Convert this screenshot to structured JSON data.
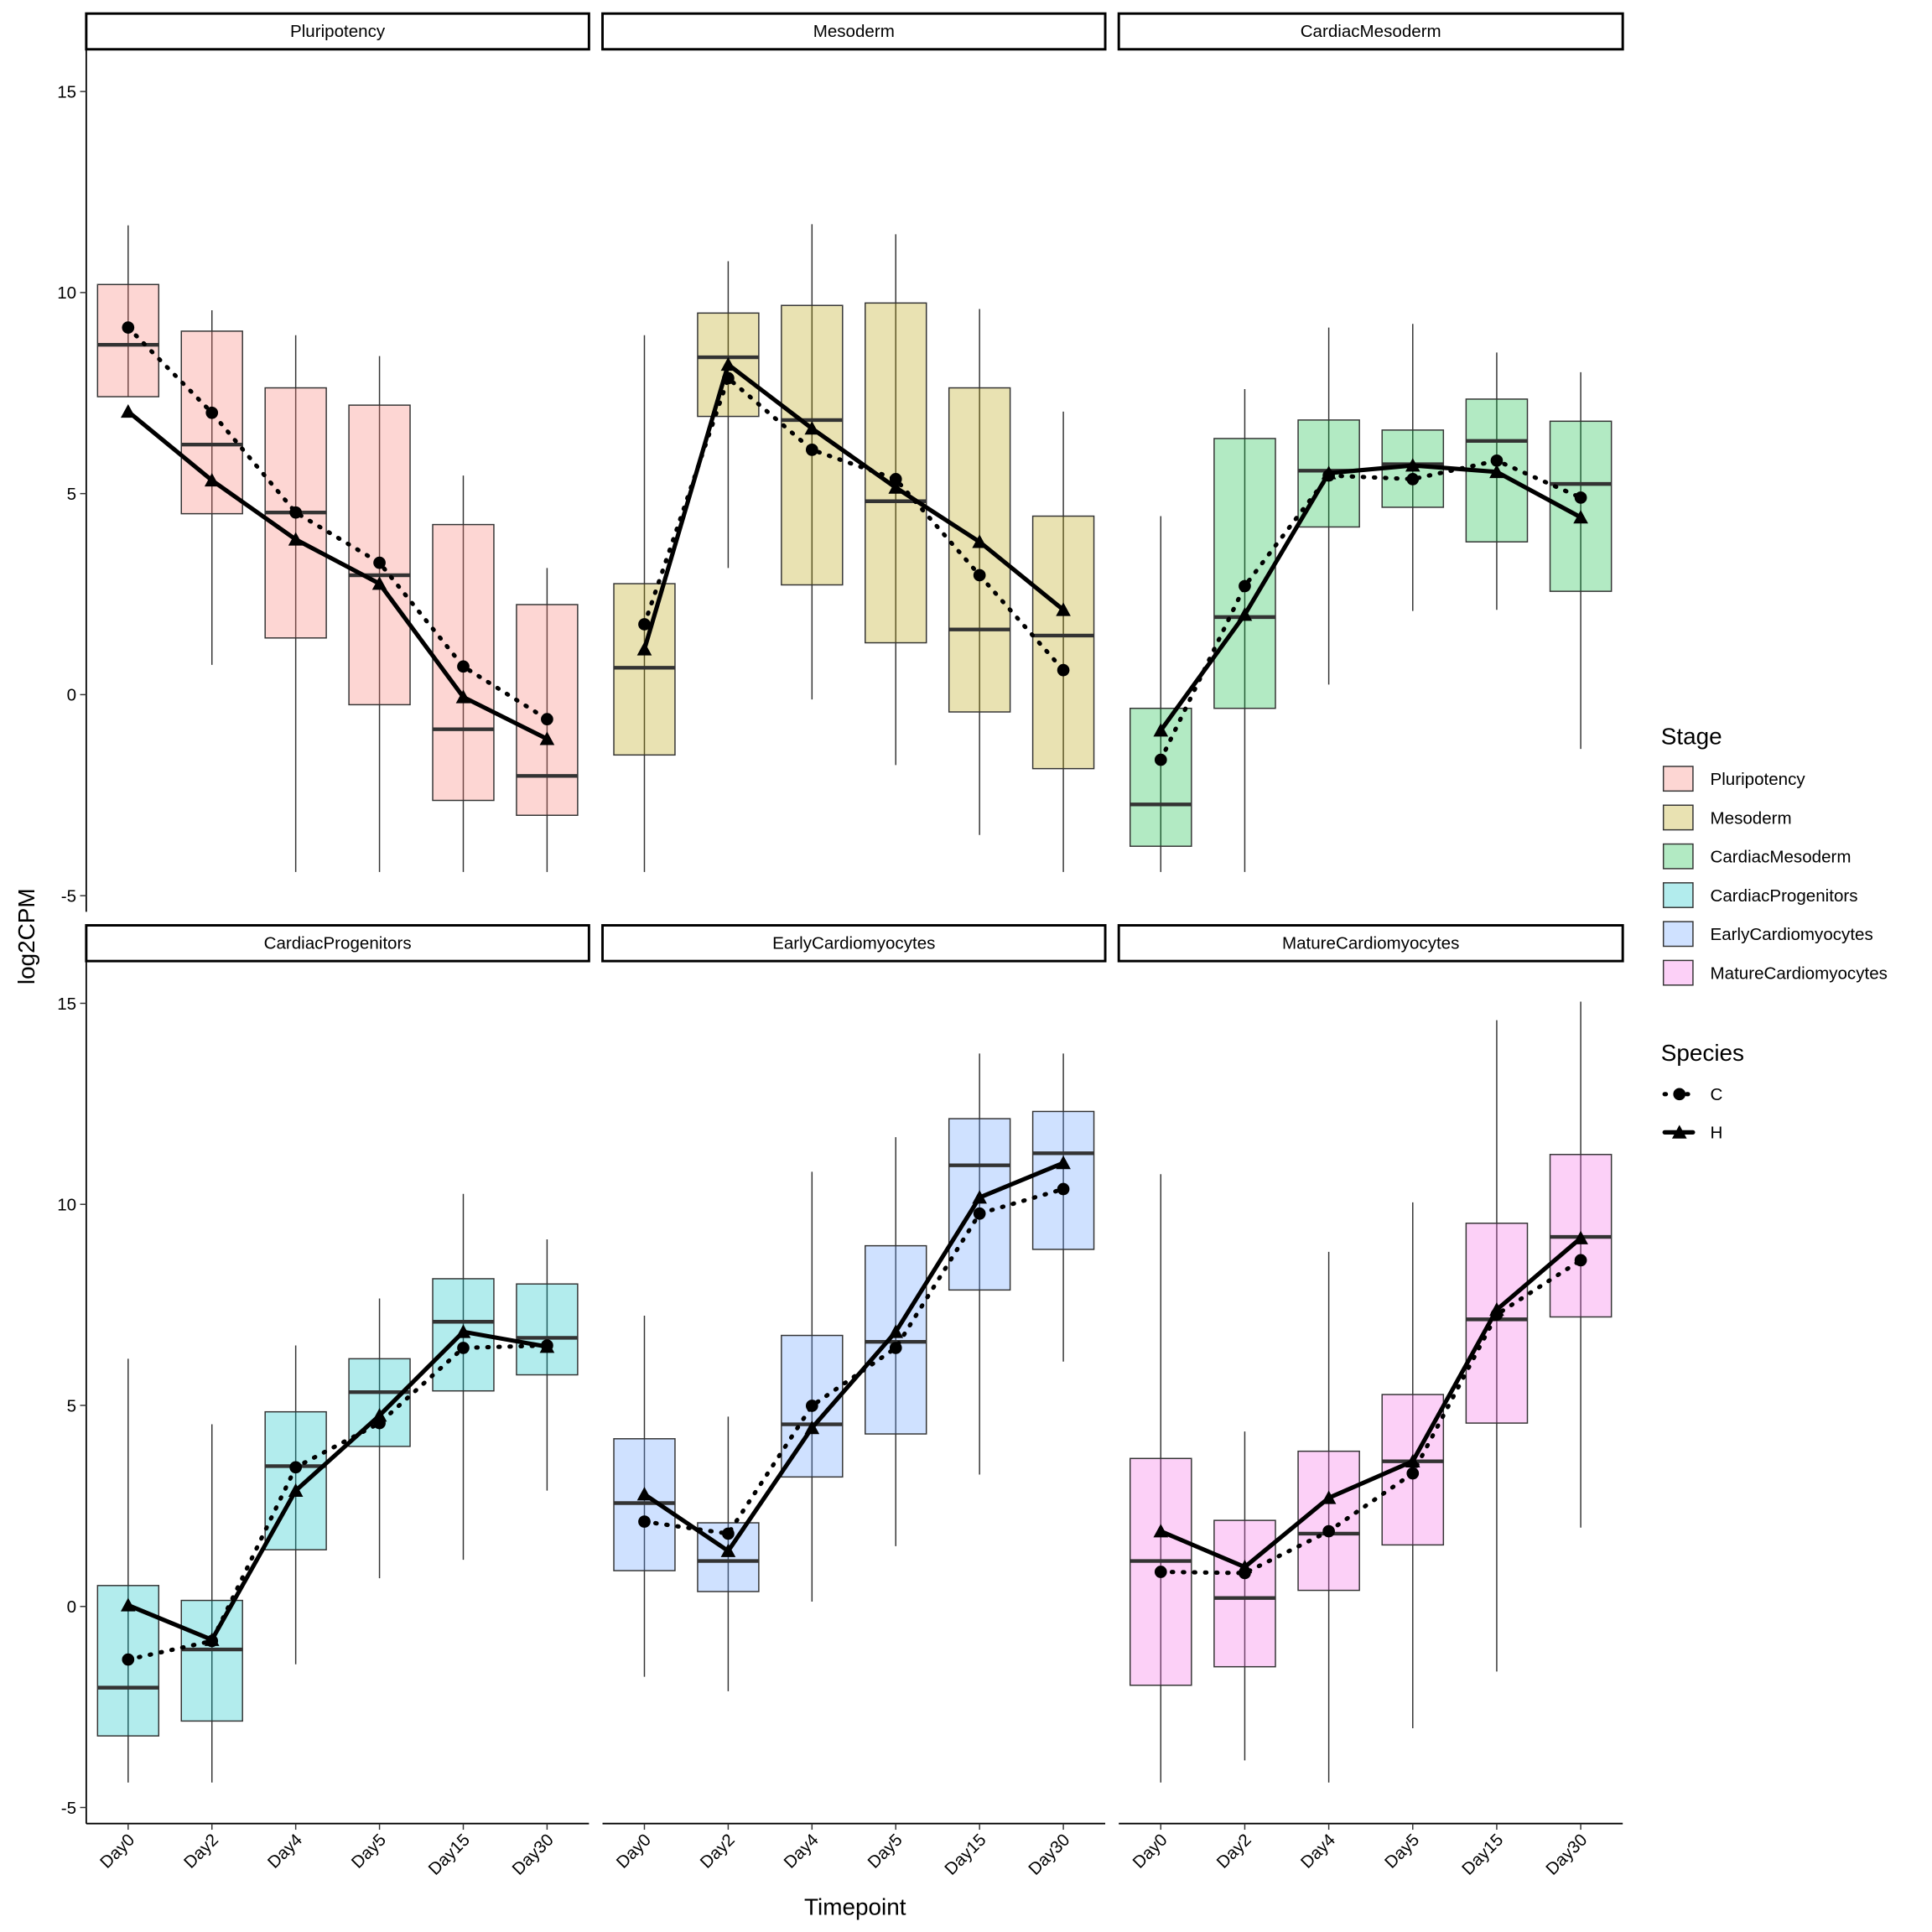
{
  "chart_data": [
    {
      "type": "box",
      "title": "Pluripotency",
      "color": "#F8766D",
      "categories": [
        "Day0",
        "Day2",
        "Day4",
        "Day5",
        "Day15",
        "Day30"
      ],
      "ylim": [
        -5.4,
        16.05
      ],
      "yticks": [
        -5,
        0,
        5,
        10,
        15
      ],
      "whisker_low": [
        7.41,
        0.74,
        -4.41,
        -4.41,
        -4.41,
        -4.41
      ],
      "q1": [
        7.41,
        4.5,
        1.41,
        -0.25,
        -2.63,
        -3.0
      ],
      "median": [
        8.7,
        6.22,
        4.53,
        2.97,
        -0.86,
        -2.02
      ],
      "q3": [
        10.2,
        9.04,
        7.63,
        7.2,
        4.23,
        2.24
      ],
      "whisker_high": [
        11.67,
        9.56,
        8.94,
        8.42,
        5.45,
        3.15
      ],
      "series": [
        {
          "name": "C",
          "color": "#000000",
          "values": [
            9.13,
            7.01,
            4.53,
            3.28,
            0.7,
            -0.61
          ]
        },
        {
          "name": "H",
          "color": "#000000",
          "values": [
            7.04,
            5.33,
            3.86,
            2.76,
            -0.06,
            -1.1
          ]
        }
      ]
    },
    {
      "type": "box",
      "title": "Mesoderm",
      "color": "#B79F00",
      "categories": [
        "Day0",
        "Day2",
        "Day4",
        "Day5",
        "Day15",
        "Day30"
      ],
      "ylim": [
        -5.4,
        16.05
      ],
      "whisker_low": [
        -4.41,
        3.15,
        -0.12,
        -1.75,
        -3.49,
        -4.41
      ],
      "q1": [
        -1.5,
        6.92,
        2.73,
        1.29,
        -0.43,
        -1.84
      ],
      "median": [
        0.67,
        8.39,
        6.83,
        4.81,
        1.62,
        1.47
      ],
      "q3": [
        2.76,
        9.49,
        9.68,
        9.74,
        7.63,
        4.44
      ],
      "whisker_high": [
        8.94,
        10.78,
        11.7,
        11.45,
        9.59,
        7.04
      ],
      "series": [
        {
          "name": "C",
          "color": "#000000",
          "values": [
            1.75,
            7.87,
            6.09,
            5.36,
            2.97,
            0.61
          ]
        },
        {
          "name": "H",
          "color": "#000000",
          "values": [
            1.13,
            8.21,
            6.62,
            5.15,
            3.8,
            2.11
          ]
        }
      ]
    },
    {
      "type": "box",
      "title": "CardiacMesoderm",
      "color": "#00BA38",
      "categories": [
        "Day0",
        "Day2",
        "Day4",
        "Day5",
        "Day15",
        "Day30"
      ],
      "ylim": [
        -5.4,
        16.05
      ],
      "whisker_low": [
        -4.41,
        -4.41,
        0.25,
        2.08,
        2.11,
        -1.35
      ],
      "q1": [
        -3.77,
        -0.34,
        4.17,
        4.66,
        3.8,
        2.57
      ],
      "median": [
        -2.73,
        1.93,
        5.57,
        5.73,
        6.31,
        5.24
      ],
      "q3": [
        -0.34,
        6.37,
        6.83,
        6.58,
        7.35,
        6.8
      ],
      "whisker_high": [
        4.44,
        7.6,
        9.13,
        9.22,
        8.51,
        8.02
      ],
      "series": [
        {
          "name": "C",
          "color": "#000000",
          "values": [
            -1.62,
            2.7,
            5.45,
            5.36,
            5.82,
            4.9
          ]
        },
        {
          "name": "H",
          "color": "#000000",
          "values": [
            -0.89,
            1.99,
            5.51,
            5.7,
            5.54,
            4.41
          ]
        }
      ]
    },
    {
      "type": "box",
      "title": "CardiacProgenitors",
      "color": "#00BFC4",
      "categories": [
        "Day0",
        "Day2",
        "Day4",
        "Day5",
        "Day15",
        "Day30"
      ],
      "ylim": [
        -5.4,
        16.05
      ],
      "yticks": [
        -5,
        0,
        5,
        10,
        15
      ],
      "whisker_low": [
        -4.38,
        -4.38,
        -1.44,
        0.7,
        1.16,
        2.88
      ],
      "q1": [
        -3.22,
        -2.85,
        1.41,
        3.98,
        5.36,
        5.76
      ],
      "median": [
        -2.02,
        -1.07,
        3.49,
        5.33,
        7.08,
        6.68
      ],
      "q3": [
        0.52,
        0.15,
        4.84,
        6.16,
        8.15,
        8.02
      ],
      "whisker_high": [
        6.16,
        4.53,
        6.49,
        7.66,
        10.26,
        9.13
      ],
      "series": [
        {
          "name": "C",
          "color": "#000000",
          "values": [
            -1.32,
            -0.86,
            3.46,
            4.56,
            6.43,
            6.49
          ]
        },
        {
          "name": "H",
          "color": "#000000",
          "values": [
            0.03,
            -0.83,
            2.88,
            4.75,
            6.83,
            6.46
          ]
        }
      ]
    },
    {
      "type": "box",
      "title": "EarlyCardiomyocytes",
      "color": "#619CFF",
      "categories": [
        "Day0",
        "Day2",
        "Day4",
        "Day5",
        "Day15",
        "Day30"
      ],
      "ylim": [
        -5.4,
        16.05
      ],
      "whisker_low": [
        -1.75,
        -2.11,
        0.12,
        1.5,
        3.28,
        6.09
      ],
      "q1": [
        0.89,
        0.37,
        3.22,
        4.29,
        7.87,
        8.88
      ],
      "median": [
        2.57,
        1.13,
        4.53,
        6.58,
        10.97,
        11.27
      ],
      "q3": [
        4.17,
        2.08,
        6.74,
        8.97,
        12.13,
        12.31
      ],
      "whisker_high": [
        7.23,
        4.72,
        10.81,
        11.67,
        13.75,
        13.75
      ],
      "series": [
        {
          "name": "C",
          "color": "#000000",
          "values": [
            2.11,
            1.81,
            4.99,
            6.43,
            9.77,
            10.38
          ]
        },
        {
          "name": "H",
          "color": "#000000",
          "values": [
            2.79,
            1.38,
            4.44,
            6.83,
            10.17,
            11.03
          ]
        }
      ]
    },
    {
      "type": "box",
      "title": "MatureCardiomyocytes",
      "color": "#F564E3",
      "categories": [
        "Day0",
        "Day2",
        "Day4",
        "Day5",
        "Day15",
        "Day30"
      ],
      "ylim": [
        -5.4,
        16.05
      ],
      "whisker_low": [
        -4.38,
        -3.83,
        -4.38,
        -3.03,
        -1.62,
        1.96
      ],
      "q1": [
        -1.96,
        -1.5,
        0.4,
        1.53,
        4.56,
        7.2
      ],
      "median": [
        1.13,
        0.21,
        1.81,
        3.61,
        7.14,
        9.19
      ],
      "q3": [
        3.68,
        2.14,
        3.86,
        5.27,
        9.53,
        11.24
      ],
      "whisker_high": [
        10.75,
        4.35,
        8.82,
        10.05,
        14.58,
        15.04
      ],
      "series": [
        {
          "name": "C",
          "color": "#000000",
          "values": [
            0.86,
            0.83,
            1.87,
            3.31,
            7.26,
            8.61
          ]
        },
        {
          "name": "H",
          "color": "#000000",
          "values": [
            1.87,
            0.98,
            2.7,
            3.61,
            7.38,
            9.16
          ]
        }
      ]
    }
  ],
  "y_label": "log2CPM",
  "x_label": "Timepoint",
  "fill_legend_title": "Stage",
  "line_legend_title": "Species",
  "legend_position": "right"
}
